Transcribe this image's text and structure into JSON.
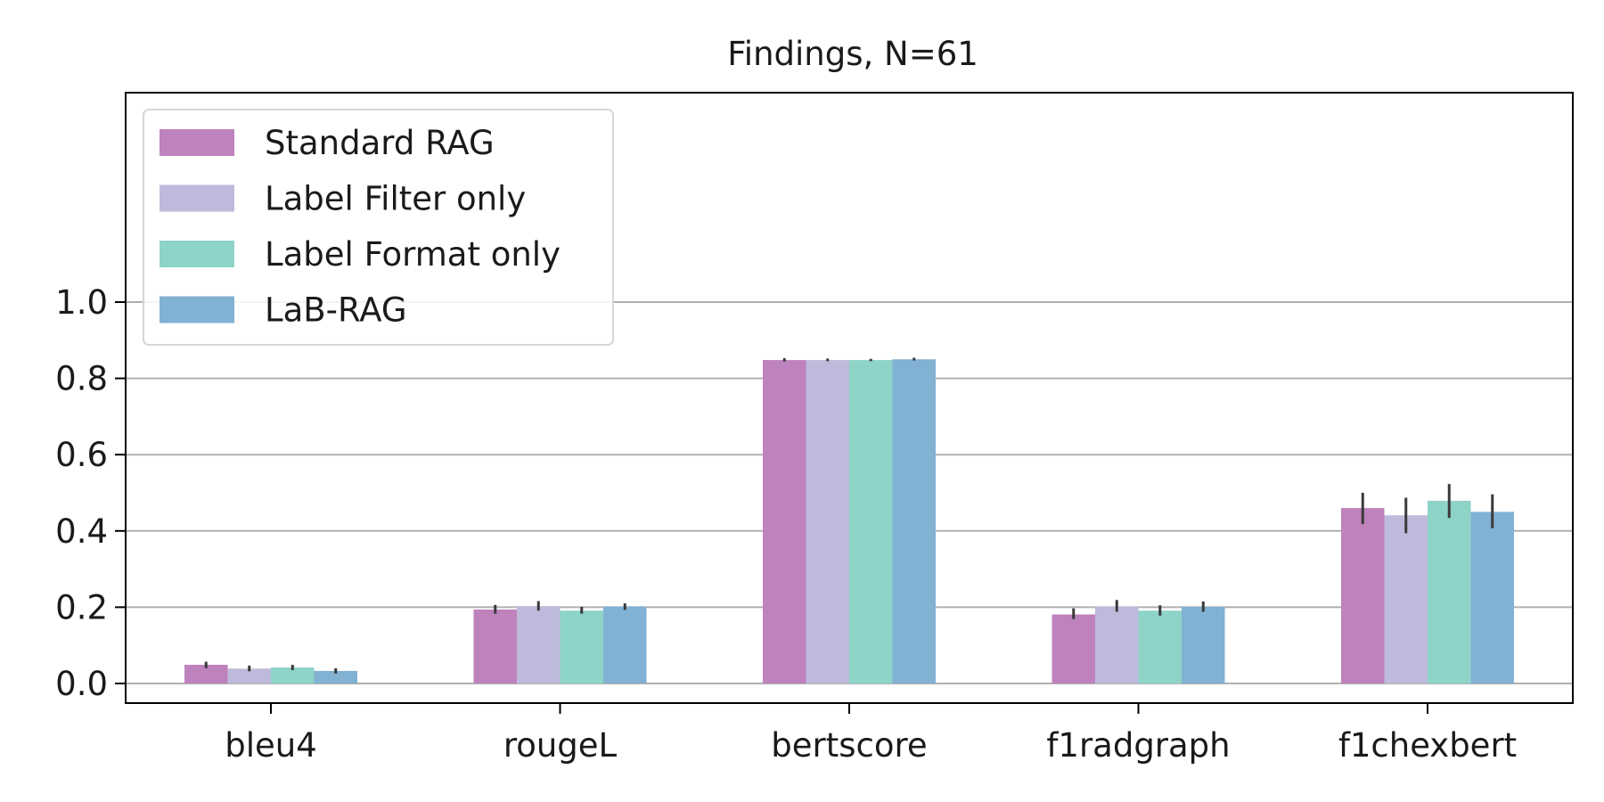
{
  "chart_data": {
    "type": "bar",
    "title": "Findings, N=61",
    "xlabel": "",
    "ylabel": "",
    "categories": [
      "bleu4",
      "rougeL",
      "bertscore",
      "f1radgraph",
      "f1chexbert"
    ],
    "series": [
      {
        "name": "Standard RAG",
        "color": "#be82bd",
        "values": [
          0.049,
          0.194,
          0.848,
          0.181,
          0.46
        ],
        "err": [
          [
            0.04,
            0.057
          ],
          [
            0.183,
            0.206
          ],
          [
            0.844,
            0.853
          ],
          [
            0.169,
            0.197
          ],
          [
            0.418,
            0.5
          ]
        ]
      },
      {
        "name": "Label Filter only",
        "color": "#bebadb",
        "values": [
          0.039,
          0.203,
          0.848,
          0.202,
          0.441
        ],
        "err": [
          [
            0.032,
            0.047
          ],
          [
            0.191,
            0.216
          ],
          [
            0.845,
            0.852
          ],
          [
            0.188,
            0.219
          ],
          [
            0.394,
            0.487
          ]
        ]
      },
      {
        "name": "Label Format only",
        "color": "#8ed3c7",
        "values": [
          0.042,
          0.191,
          0.848,
          0.191,
          0.479
        ],
        "err": [
          [
            0.035,
            0.049
          ],
          [
            0.183,
            0.201
          ],
          [
            0.845,
            0.851
          ],
          [
            0.178,
            0.205
          ],
          [
            0.434,
            0.523
          ]
        ]
      },
      {
        "name": "LaB-RAG",
        "color": "#81b1d3",
        "values": [
          0.033,
          0.202,
          0.85,
          0.201,
          0.45
        ],
        "err": [
          [
            0.026,
            0.04
          ],
          [
            0.193,
            0.21
          ],
          [
            0.847,
            0.854
          ],
          [
            0.188,
            0.215
          ],
          [
            0.407,
            0.496
          ]
        ]
      }
    ],
    "yticks": [
      "0.0",
      "0.2",
      "0.4",
      "0.6",
      "0.8",
      "1.0"
    ],
    "ylim": [
      -0.05,
      1.55
    ],
    "grid": "y",
    "legend_position": "upper-left"
  }
}
